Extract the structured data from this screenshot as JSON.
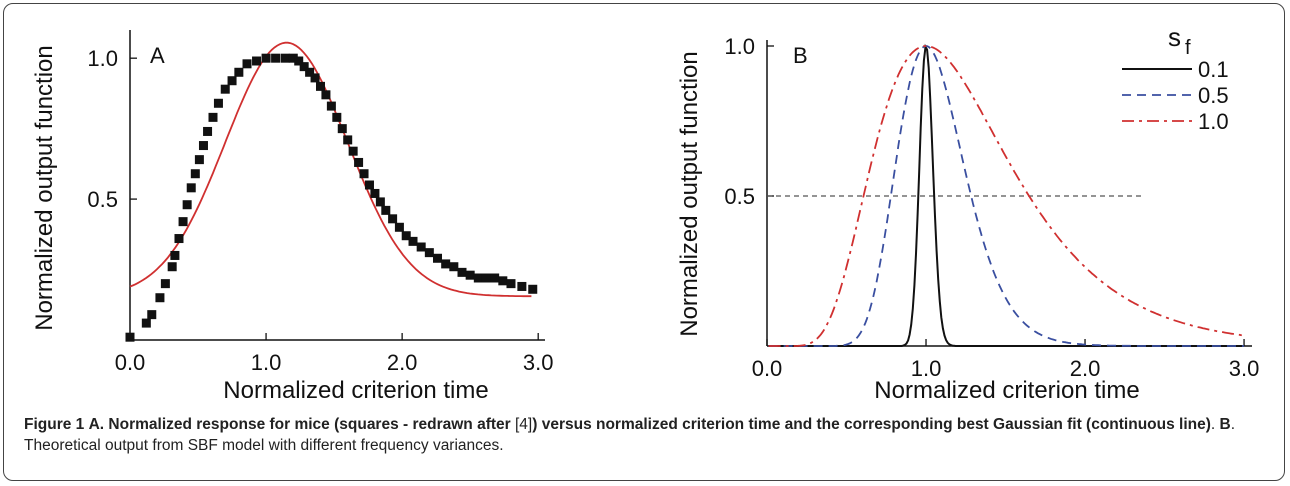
{
  "caption": {
    "fig_label": "Figure 1",
    "part_a_letter": "A.",
    "part_a_text": " Normalized response for mice (squares - redrawn after ",
    "ref": "[4]",
    "part_a_text2": ") versus normalized criterion time and the corresponding best Gaussian fit (continuous line)",
    "sep": ". ",
    "part_b_letter": "B",
    "part_b_text": ". Theoretical output from SBF model with different frequency variances."
  },
  "chart_data": [
    {
      "panel": "A",
      "type": "scatter",
      "xlabel": "Normalized criterion time",
      "ylabel": "Normalized output function",
      "xlim": [
        0.0,
        3.05
      ],
      "ylim": [
        0.0,
        1.1
      ],
      "xticks": [
        "0.0",
        "1.0",
        "2.0",
        "3.0"
      ],
      "yticks": [
        "0.5",
        "1.0"
      ],
      "series": [
        {
          "marker": "square",
          "color": "#111111",
          "x": [
            0.0,
            0.12,
            0.16,
            0.22,
            0.26,
            0.31,
            0.33,
            0.36,
            0.39,
            0.42,
            0.45,
            0.48,
            0.51,
            0.54,
            0.57,
            0.61,
            0.65,
            0.7,
            0.75,
            0.8,
            0.86,
            0.93,
            1.0,
            1.07,
            1.14,
            1.2,
            1.24,
            1.28,
            1.32,
            1.36,
            1.4,
            1.44,
            1.48,
            1.52,
            1.56,
            1.6,
            1.64,
            1.68,
            1.72,
            1.76,
            1.8,
            1.84,
            1.88,
            1.93,
            1.98,
            2.03,
            2.08,
            2.14,
            2.2,
            2.26,
            2.32,
            2.38,
            2.44,
            2.5,
            2.56,
            2.62,
            2.68,
            2.74,
            2.8,
            2.88,
            2.96
          ],
          "y": [
            0.01,
            0.06,
            0.09,
            0.15,
            0.2,
            0.26,
            0.3,
            0.36,
            0.42,
            0.48,
            0.54,
            0.59,
            0.64,
            0.69,
            0.74,
            0.79,
            0.84,
            0.89,
            0.92,
            0.95,
            0.98,
            0.99,
            1.0,
            1.0,
            1.0,
            1.0,
            0.99,
            0.97,
            0.95,
            0.93,
            0.9,
            0.87,
            0.83,
            0.79,
            0.75,
            0.71,
            0.67,
            0.63,
            0.59,
            0.55,
            0.52,
            0.49,
            0.46,
            0.43,
            0.4,
            0.37,
            0.35,
            0.33,
            0.31,
            0.29,
            0.27,
            0.26,
            0.24,
            0.23,
            0.22,
            0.22,
            0.22,
            0.21,
            0.2,
            0.19,
            0.18
          ]
        },
        {
          "type": "line",
          "color": "#d03030",
          "style": "solid",
          "gaussian_fit": {
            "baseline": 0.155,
            "amplitude": 0.9,
            "center": 1.15,
            "sigma": 0.45
          }
        }
      ]
    },
    {
      "panel": "B",
      "type": "line",
      "xlabel": "Normalized criterion time",
      "ylabel": "Normalized output function",
      "xlim": [
        0.0,
        3.05
      ],
      "ylim": [
        0.0,
        1.02
      ],
      "xticks": [
        "0.0",
        "1.0",
        "2.0",
        "3.0"
      ],
      "yticks": [
        "0.5",
        "1.0"
      ],
      "reference_line": {
        "y": 0.5,
        "style": "dashed",
        "color": "#555555"
      },
      "legend": {
        "title": "s",
        "title_sub": "f",
        "position": "top-right"
      },
      "series": [
        {
          "name": "0.1",
          "color": "#111111",
          "style": "solid",
          "s_f": 0.1
        },
        {
          "name": "0.5",
          "color": "#3a4fa0",
          "style": "dashed",
          "s_f": 0.5
        },
        {
          "name": "1.0",
          "color": "#d03030",
          "style": "dashdot",
          "s_f": 1.0
        }
      ]
    }
  ]
}
